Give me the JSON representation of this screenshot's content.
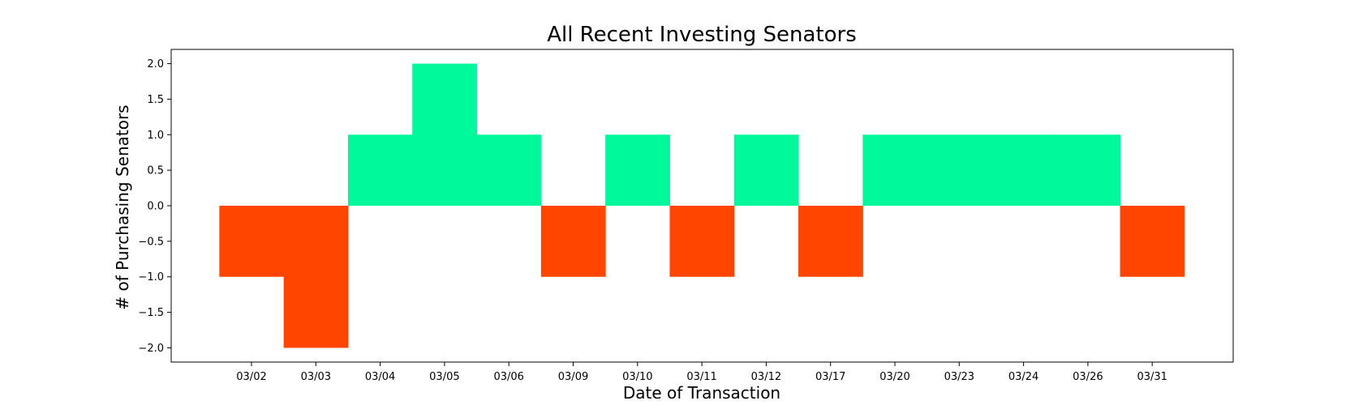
{
  "chart_data": {
    "type": "bar",
    "title": "All Recent Investing Senators",
    "xlabel": "Date of Transaction",
    "ylabel": "# of Purchasing Senators",
    "categories": [
      "03/02",
      "03/03",
      "03/04",
      "03/05",
      "03/06",
      "03/09",
      "03/10",
      "03/11",
      "03/12",
      "03/17",
      "03/20",
      "03/23",
      "03/24",
      "03/26",
      "03/31"
    ],
    "values": [
      -1,
      -2,
      1,
      2,
      1,
      -1,
      1,
      -1,
      1,
      -1,
      1,
      1,
      1,
      1,
      -1
    ],
    "ylim": [
      -2.2,
      2.2
    ],
    "yticks": [
      -2.0,
      -1.5,
      -1.0,
      -0.5,
      0.0,
      0.5,
      1.0,
      1.5,
      2.0
    ],
    "positive_color": "#00f99b",
    "negative_color": "#ff4500",
    "grid": false,
    "legend": "none"
  }
}
